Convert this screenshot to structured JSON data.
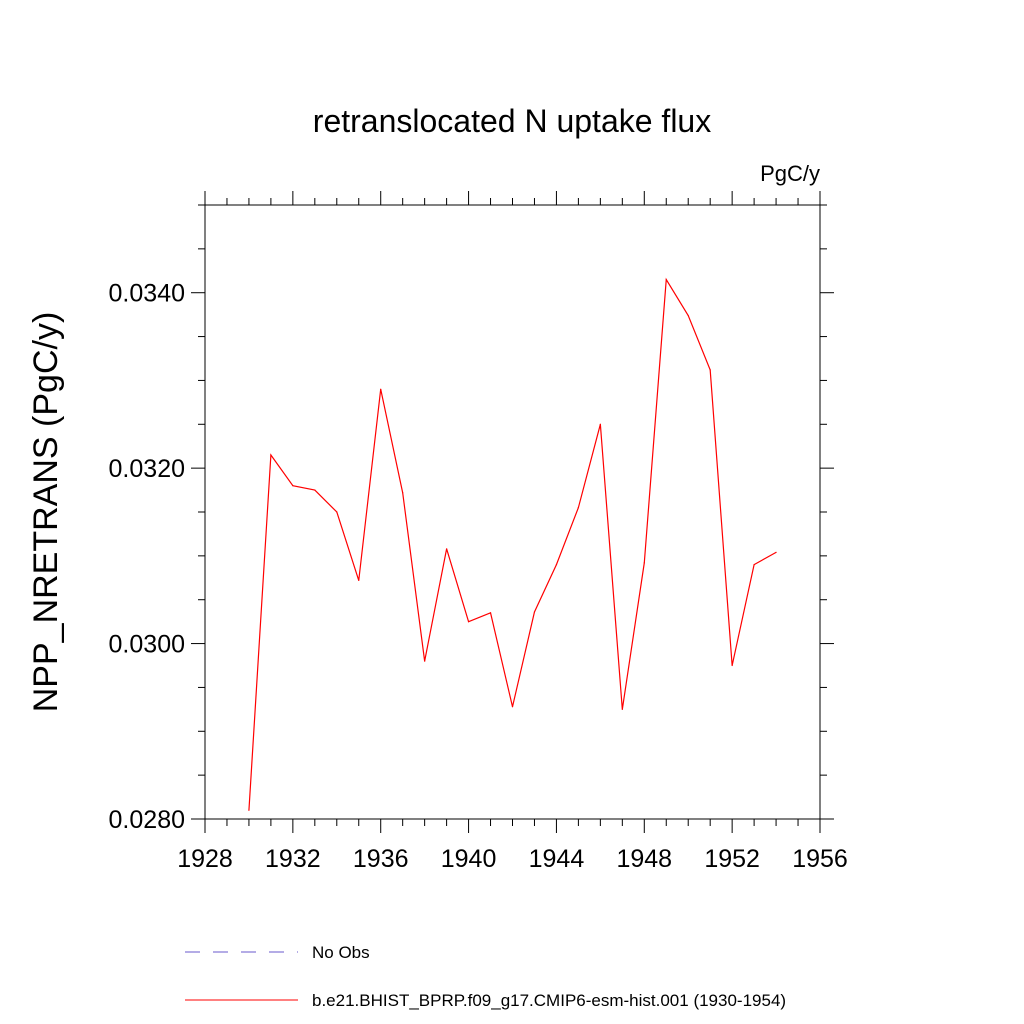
{
  "chart_data": {
    "type": "line",
    "title": "retranslocated N uptake flux",
    "units_label": "PgC/y",
    "ylabel": "NPP_NRETRANS  (PgC/y)",
    "xlabel": "",
    "xlim": [
      1928,
      1956
    ],
    "ylim": [
      0.028,
      0.035
    ],
    "x_ticks": [
      "1928",
      "1932",
      "1936",
      "1940",
      "1944",
      "1948",
      "1952",
      "1956"
    ],
    "y_ticks": [
      "0.0280",
      "0.0300",
      "0.0320",
      "0.0340"
    ],
    "grid": false,
    "legend_position": "bottom",
    "series": [
      {
        "name": "b.e21.BHIST_BPRP.f09_g17.CMIP6-esm-hist.001 (1930-1954)",
        "color": "#ff0000",
        "style": "solid",
        "x": [
          1930,
          1931,
          1932,
          1933,
          1934,
          1935,
          1936,
          1937,
          1938,
          1939,
          1940,
          1941,
          1942,
          1943,
          1944,
          1945,
          1946,
          1947,
          1948,
          1949,
          1950,
          1951,
          1952,
          1953,
          1954
        ],
        "y": [
          0.0281,
          0.03215,
          0.0318,
          0.03175,
          0.0315,
          0.03072,
          0.0329,
          0.03172,
          0.0298,
          0.03108,
          0.03025,
          0.03035,
          0.02928,
          0.03036,
          0.0309,
          0.03155,
          0.0325,
          0.02925,
          0.03092,
          0.03415,
          0.03374,
          0.03312,
          0.02975,
          0.0309,
          0.03104
        ]
      }
    ],
    "legend": [
      {
        "label": "No Obs",
        "color": "#6a5acd",
        "style": "dashed"
      },
      {
        "label": "b.e21.BHIST_BPRP.f09_g17.CMIP6-esm-hist.001 (1930-1954)",
        "color": "#ff0000",
        "style": "solid"
      }
    ]
  }
}
